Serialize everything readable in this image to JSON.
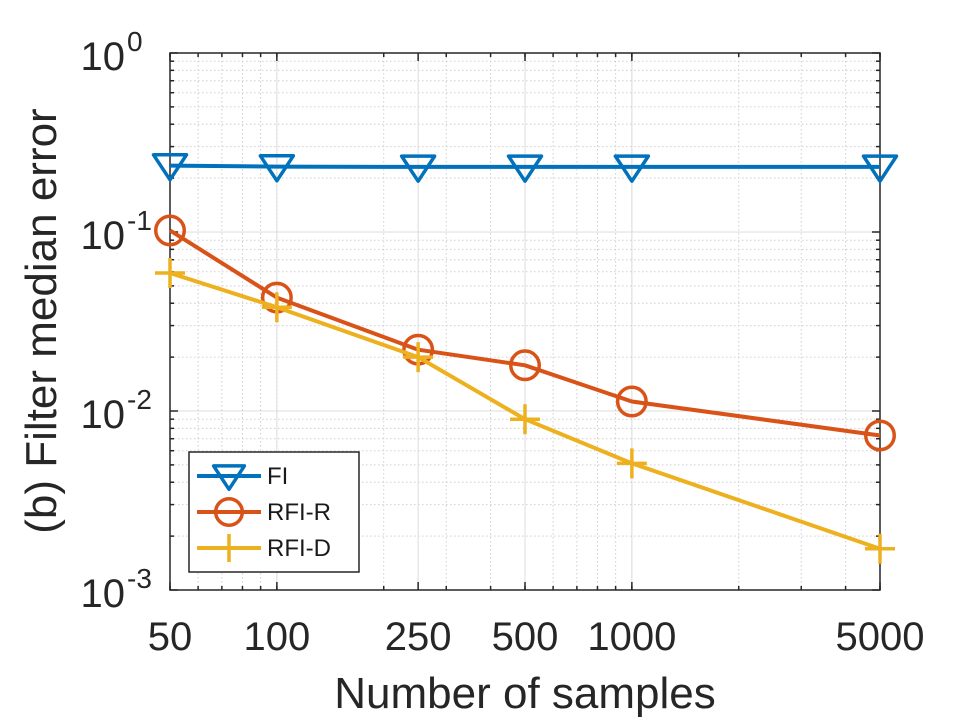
{
  "chart_data": {
    "type": "line",
    "title": "",
    "xlabel": "Number of samples",
    "ylabel": "(b) Filter median error",
    "xscale": "log",
    "yscale": "log",
    "xlim": [
      50,
      5000
    ],
    "ylim": [
      0.001,
      1
    ],
    "x": [
      50,
      100,
      250,
      500,
      1000,
      5000
    ],
    "xticks": [
      50,
      100,
      250,
      500,
      1000,
      5000
    ],
    "xtick_labels": [
      "50",
      "100",
      "250",
      "500",
      "1000",
      "5000"
    ],
    "yticks": [
      {
        "value": 1,
        "base": "10",
        "exp": "0"
      },
      {
        "value": 0.1,
        "base": "10",
        "exp": "-1"
      },
      {
        "value": 0.01,
        "base": "10",
        "exp": "-2"
      },
      {
        "value": 0.001,
        "base": "10",
        "exp": "-3"
      }
    ],
    "grid": true,
    "legend_position": "bottom-left",
    "series": [
      {
        "name": "FI",
        "color": "#0072BD",
        "marker": "triangle-down",
        "values": [
          0.235,
          0.232,
          0.231,
          0.231,
          0.231,
          0.231
        ]
      },
      {
        "name": "RFI-R",
        "color": "#D95319",
        "marker": "circle",
        "values": [
          0.102,
          0.043,
          0.022,
          0.018,
          0.0113,
          0.0073
        ]
      },
      {
        "name": "RFI-D",
        "color": "#EDB120",
        "marker": "plus",
        "values": [
          0.059,
          0.038,
          0.02,
          0.009,
          0.0051,
          0.0017
        ]
      }
    ]
  }
}
